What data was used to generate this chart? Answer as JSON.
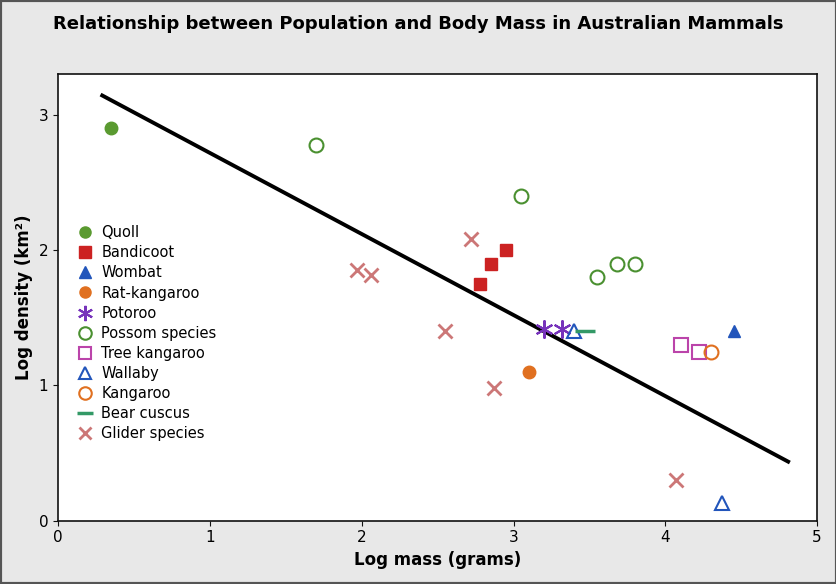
{
  "title": "Relationship between Population and Body Mass in Australian Mammals",
  "xlabel": "Log mass (grams)",
  "ylabel": "Log density (km²)",
  "xlim": [
    0.0,
    5.0
  ],
  "ylim": [
    0.0,
    3.3
  ],
  "xticks": [
    0.0,
    1.0,
    2.0,
    3.0,
    4.0,
    5.0
  ],
  "yticks": [
    0.0,
    1.0,
    2.0,
    3.0
  ],
  "regression_line": {
    "x": [
      0.28,
      4.82
    ],
    "y": [
      3.15,
      0.43
    ]
  },
  "species": [
    {
      "name": "Quoll",
      "color": "#5a9a30",
      "marker": "o",
      "filled": true,
      "points": [
        [
          0.35,
          2.9
        ]
      ]
    },
    {
      "name": "Bandicoot",
      "color": "#cc2222",
      "marker": "s",
      "filled": true,
      "points": [
        [
          2.78,
          1.75
        ],
        [
          2.85,
          1.9
        ],
        [
          2.95,
          2.0
        ]
      ]
    },
    {
      "name": "Wombat",
      "color": "#2255bb",
      "marker": "^",
      "filled": true,
      "points": [
        [
          4.45,
          1.4
        ]
      ]
    },
    {
      "name": "Rat-kangaroo",
      "color": "#e07020",
      "marker": "o",
      "filled": true,
      "points": [
        [
          3.1,
          1.1
        ]
      ]
    },
    {
      "name": "Potoroo",
      "color": "#7733bb",
      "marker": "asterisk",
      "filled": false,
      "points": [
        [
          3.2,
          1.42
        ],
        [
          3.32,
          1.42
        ]
      ]
    },
    {
      "name": "Possom species",
      "color": "#4a9030",
      "marker": "o",
      "filled": false,
      "points": [
        [
          1.7,
          2.78
        ],
        [
          3.05,
          2.4
        ],
        [
          3.55,
          1.8
        ],
        [
          3.68,
          1.9
        ],
        [
          3.8,
          1.9
        ]
      ]
    },
    {
      "name": "Tree kangaroo",
      "color": "#bb44aa",
      "marker": "s",
      "filled": false,
      "points": [
        [
          4.1,
          1.3
        ],
        [
          4.22,
          1.25
        ]
      ]
    },
    {
      "name": "Wallaby",
      "color": "#2255bb",
      "marker": "^",
      "filled": false,
      "points": [
        [
          3.4,
          1.4
        ],
        [
          4.37,
          0.13
        ]
      ]
    },
    {
      "name": "Kangaroo",
      "color": "#e07020",
      "marker": "o",
      "filled": false,
      "points": [
        [
          4.3,
          1.25
        ]
      ]
    },
    {
      "name": "Bear cuscus",
      "color": "#339966",
      "marker": "dash",
      "filled": false,
      "points": [
        [
          3.47,
          1.4
        ]
      ]
    },
    {
      "name": "Glider species",
      "color": "#cc7777",
      "marker": "x",
      "filled": false,
      "points": [
        [
          1.97,
          1.85
        ],
        [
          2.06,
          1.82
        ],
        [
          2.55,
          1.4
        ],
        [
          2.72,
          2.08
        ],
        [
          2.87,
          0.98
        ],
        [
          4.07,
          0.3
        ]
      ]
    }
  ],
  "outer_bg": "#c8c8c8",
  "inner_bg": "#e8e8e8",
  "plot_bg": "#ffffff",
  "title_fontsize": 13,
  "axis_label_fontsize": 12,
  "tick_fontsize": 11,
  "legend_fontsize": 10.5
}
